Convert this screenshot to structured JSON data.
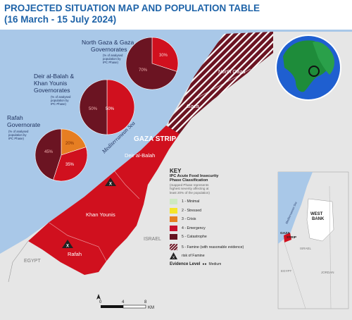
{
  "title": {
    "line1": "PROJECTED SITUATION MAP AND POPULATION TABLE",
    "line2": "(16 March - 15 July 2024)"
  },
  "map_labels": {
    "north_gaza": "North Gaza",
    "gaza": "Gaza",
    "gaza_strip": "GAZA STRIP",
    "deir_al_balah": "Deir al-Balah",
    "khan_younis": "Khan Younis",
    "rafah": "Rafah",
    "sea": "Mediterranean Sea",
    "israel": "ISRAEL",
    "egypt": "EGYPT"
  },
  "governorates": [
    {
      "name": "North Gaza & Gaza Governorates",
      "line1": "North Gaza & Gaza",
      "line2": "Governorates",
      "note": [
        "(% of analysed",
        "population by",
        "IPC Phase)"
      ],
      "phase4_pct": 30,
      "phase5_pct": 70
    },
    {
      "name": "Deir al-Balah & Khan Younis Governorates",
      "line1": "Deir al-Balah &",
      "line2": "Khan Younis",
      "line3": "Governorates",
      "note": [
        "(% of analysed",
        "population by",
        "IPC Phase)"
      ],
      "phase4_pct": 50,
      "phase5_pct": 50
    },
    {
      "name": "Rafah Governorate",
      "line1": "Rafah",
      "line2": "Governorate",
      "note": [
        "(% of analysed",
        "population by",
        "IPC Phase)"
      ],
      "phase3_pct": 20,
      "phase4_pct": 35,
      "phase5_pct": 45
    }
  ],
  "pie_labels": {
    "ng_p4": "30%",
    "ng_p5": "70%",
    "dk_p4": "50%",
    "dk_p5": "50%",
    "r_p3": "20%",
    "r_p4": "35%",
    "r_p5": "45%"
  },
  "key": {
    "title": "KEY",
    "subtitle": [
      "IPC Acute Food Insecurity",
      "Phase Classification"
    ],
    "note": [
      "(mapped Phase represents",
      "highest severity affecting at",
      "least 20% of the population)"
    ],
    "phases": [
      {
        "label": "1 - Minimal",
        "color": "#cde9c3"
      },
      {
        "label": "2 - Stressed",
        "color": "#f5e52a"
      },
      {
        "label": "3 - Crisis",
        "color": "#e67e22"
      },
      {
        "label": "4 - Emergency",
        "color": "#c8102e"
      },
      {
        "label": "5 - Catastrophe",
        "color": "#641220"
      }
    ],
    "famine_label": "5 - Famine (with reasonable evidence)",
    "risk_label": "risk of Famine",
    "evidence_label": "Evidence Level",
    "evidence_value": "Medium"
  },
  "scale": {
    "t0": "0",
    "t1": "4",
    "t2": "8",
    "unit": "KM"
  },
  "inset": {
    "west_bank": [
      "WEST",
      "BANK"
    ],
    "gaza_strip": [
      "GAZA",
      "STRIP"
    ],
    "israel": "ISRAEL",
    "egypt": "EGYPT",
    "jordan": "JORDAN",
    "sea": "Mediterranean Sea"
  },
  "colors": {
    "sea": "#a9c8e8",
    "land": "#e6e6e6",
    "phase4": "#d0101e",
    "phase5": "#6b1422",
    "phase3": "#e67e22",
    "title": "#1e63a8"
  }
}
